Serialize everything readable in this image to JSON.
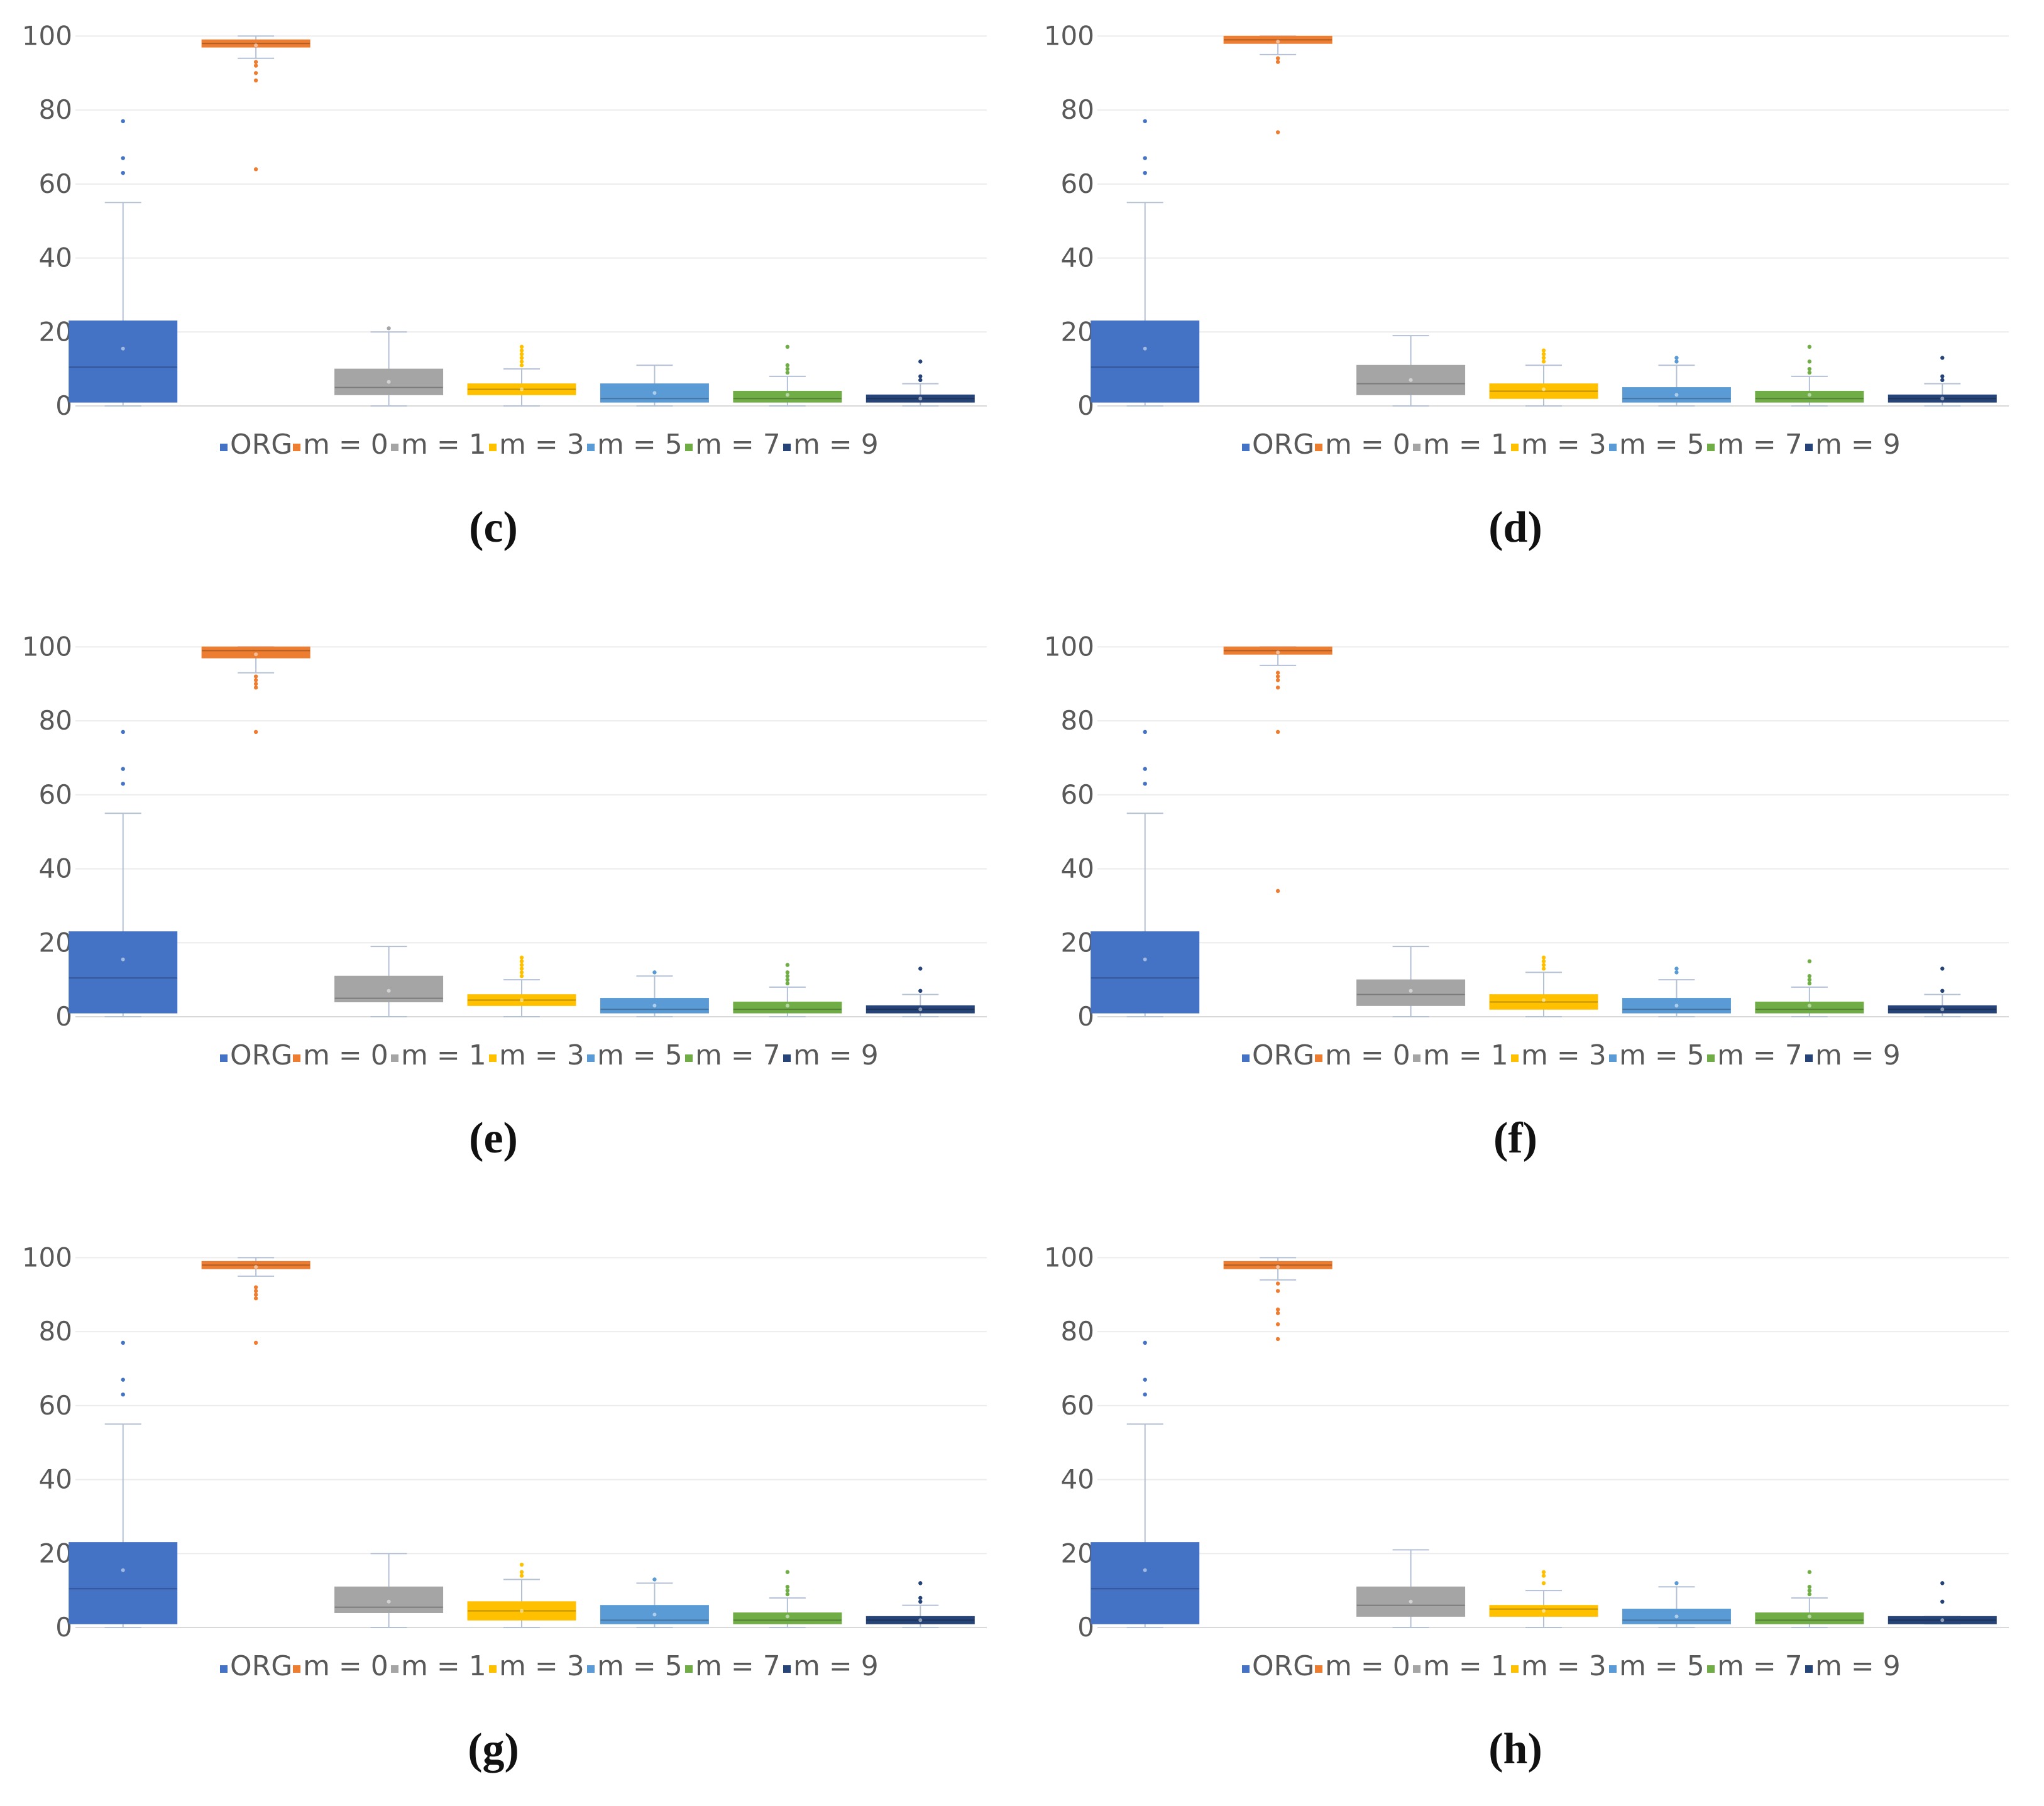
{
  "figure": {
    "series": [
      {
        "name": "ORG",
        "color": "#4472C4"
      },
      {
        "name": "m = 0",
        "color": "#ED7D31"
      },
      {
        "name": "m = 1",
        "color": "#A5A5A5"
      },
      {
        "name": "m = 3",
        "color": "#FFC000"
      },
      {
        "name": "m = 5",
        "color": "#5B9BD5"
      },
      {
        "name": "m = 7",
        "color": "#70AD47"
      },
      {
        "name": "m = 9",
        "color": "#264478"
      }
    ],
    "y_ticks": [
      "0",
      "20",
      "40",
      "60",
      "80",
      "100"
    ]
  },
  "chart_data": [
    {
      "type": "box",
      "panel": "(c)",
      "ylim": [
        0,
        105
      ],
      "grid": true,
      "legend": "bottom",
      "boxes": [
        {
          "series": "ORG",
          "min": 0,
          "q1": 1,
          "median": 10.5,
          "q3": 23,
          "max": 55,
          "mean": 15.5,
          "outliers": [
            63,
            67,
            77
          ]
        },
        {
          "series": "m = 0",
          "min": 94,
          "q1": 97,
          "median": 98,
          "q3": 99,
          "max": 100,
          "mean": 97.5,
          "outliers": [
            64,
            88,
            90,
            92,
            93
          ]
        },
        {
          "series": "m = 1",
          "min": 0,
          "q1": 3,
          "median": 5,
          "q3": 10,
          "max": 20,
          "mean": 6.5,
          "outliers": [
            21
          ]
        },
        {
          "series": "m = 3",
          "min": 0,
          "q1": 3,
          "median": 4.5,
          "q3": 6,
          "max": 10,
          "mean": 4.5,
          "outliers": [
            11,
            12,
            13,
            14,
            15,
            16
          ]
        },
        {
          "series": "m = 5",
          "min": 0,
          "q1": 1,
          "median": 2,
          "q3": 6,
          "max": 11,
          "mean": 3.5,
          "outliers": []
        },
        {
          "series": "m = 7",
          "min": 0,
          "q1": 1,
          "median": 2,
          "q3": 4,
          "max": 8,
          "mean": 3,
          "outliers": [
            9,
            10,
            11,
            16
          ]
        },
        {
          "series": "m = 9",
          "min": 0,
          "q1": 1,
          "median": 2,
          "q3": 3,
          "max": 6,
          "mean": 2,
          "outliers": [
            7,
            8,
            12
          ]
        }
      ]
    },
    {
      "type": "box",
      "panel": "(d)",
      "ylim": [
        0,
        105
      ],
      "grid": true,
      "legend": "bottom",
      "boxes": [
        {
          "series": "ORG",
          "min": 0,
          "q1": 1,
          "median": 10.5,
          "q3": 23,
          "max": 55,
          "mean": 15.5,
          "outliers": [
            63,
            67,
            77
          ]
        },
        {
          "series": "m = 0",
          "min": 95,
          "q1": 98,
          "median": 99,
          "q3": 100,
          "max": 100,
          "mean": 98.5,
          "outliers": [
            74,
            93,
            94
          ]
        },
        {
          "series": "m = 1",
          "min": 0,
          "q1": 3,
          "median": 6,
          "q3": 11,
          "max": 19,
          "mean": 7,
          "outliers": []
        },
        {
          "series": "m = 3",
          "min": 0,
          "q1": 2,
          "median": 4,
          "q3": 6,
          "max": 11,
          "mean": 4.5,
          "outliers": [
            12,
            13,
            14,
            15
          ]
        },
        {
          "series": "m = 5",
          "min": 0,
          "q1": 1,
          "median": 2,
          "q3": 5,
          "max": 11,
          "mean": 3,
          "outliers": [
            12,
            13
          ]
        },
        {
          "series": "m = 7",
          "min": 0,
          "q1": 1,
          "median": 2,
          "q3": 4,
          "max": 8,
          "mean": 3,
          "outliers": [
            9,
            10,
            12,
            16
          ]
        },
        {
          "series": "m = 9",
          "min": 0,
          "q1": 1,
          "median": 2,
          "q3": 3,
          "max": 6,
          "mean": 2,
          "outliers": [
            7,
            8,
            13
          ]
        }
      ]
    },
    {
      "type": "box",
      "panel": "(e)",
      "ylim": [
        0,
        105
      ],
      "grid": true,
      "legend": "bottom",
      "boxes": [
        {
          "series": "ORG",
          "min": 0,
          "q1": 1,
          "median": 10.5,
          "q3": 23,
          "max": 55,
          "mean": 15.5,
          "outliers": [
            63,
            67,
            77
          ]
        },
        {
          "series": "m = 0",
          "min": 93,
          "q1": 97,
          "median": 99,
          "q3": 100,
          "max": 100,
          "mean": 98,
          "outliers": [
            77,
            89,
            90,
            91,
            92
          ]
        },
        {
          "series": "m = 1",
          "min": 0,
          "q1": 4,
          "median": 5,
          "q3": 11,
          "max": 19,
          "mean": 7,
          "outliers": []
        },
        {
          "series": "m = 3",
          "min": 0,
          "q1": 3,
          "median": 4.5,
          "q3": 6,
          "max": 10,
          "mean": 4.5,
          "outliers": [
            11,
            12,
            13,
            14,
            15,
            16
          ]
        },
        {
          "series": "m = 5",
          "min": 0,
          "q1": 1,
          "median": 2,
          "q3": 5,
          "max": 11,
          "mean": 3,
          "outliers": [
            12
          ]
        },
        {
          "series": "m = 7",
          "min": 0,
          "q1": 1,
          "median": 2,
          "q3": 4,
          "max": 8,
          "mean": 3,
          "outliers": [
            9,
            10,
            11,
            12,
            14
          ]
        },
        {
          "series": "m = 9",
          "min": 0,
          "q1": 1,
          "median": 2,
          "q3": 3,
          "max": 6,
          "mean": 2,
          "outliers": [
            7,
            13
          ]
        }
      ]
    },
    {
      "type": "box",
      "panel": "(f)",
      "ylim": [
        0,
        105
      ],
      "grid": true,
      "legend": "bottom",
      "boxes": [
        {
          "series": "ORG",
          "min": 0,
          "q1": 1,
          "median": 10.5,
          "q3": 23,
          "max": 55,
          "mean": 15.5,
          "outliers": [
            63,
            67,
            77
          ]
        },
        {
          "series": "m = 0",
          "min": 95,
          "q1": 98,
          "median": 99,
          "q3": 100,
          "max": 100,
          "mean": 98.5,
          "outliers": [
            34,
            77,
            89,
            91,
            92,
            93
          ]
        },
        {
          "series": "m = 1",
          "min": 0,
          "q1": 3,
          "median": 6,
          "q3": 10,
          "max": 19,
          "mean": 7,
          "outliers": []
        },
        {
          "series": "m = 3",
          "min": 0,
          "q1": 2,
          "median": 4,
          "q3": 6,
          "max": 12,
          "mean": 4.5,
          "outliers": [
            13,
            14,
            15,
            16
          ]
        },
        {
          "series": "m = 5",
          "min": 0,
          "q1": 1,
          "median": 2,
          "q3": 5,
          "max": 10,
          "mean": 3,
          "outliers": [
            12,
            13
          ]
        },
        {
          "series": "m = 7",
          "min": 0,
          "q1": 1,
          "median": 2,
          "q3": 4,
          "max": 8,
          "mean": 3,
          "outliers": [
            9,
            10,
            11,
            15
          ]
        },
        {
          "series": "m = 9",
          "min": 0,
          "q1": 1,
          "median": 2,
          "q3": 3,
          "max": 6,
          "mean": 2,
          "outliers": [
            7,
            13
          ]
        }
      ]
    },
    {
      "type": "box",
      "panel": "(g)",
      "ylim": [
        0,
        105
      ],
      "grid": true,
      "legend": "bottom",
      "boxes": [
        {
          "series": "ORG",
          "min": 0,
          "q1": 1,
          "median": 10.5,
          "q3": 23,
          "max": 55,
          "mean": 15.5,
          "outliers": [
            63,
            67,
            77
          ]
        },
        {
          "series": "m = 0",
          "min": 95,
          "q1": 97,
          "median": 98,
          "q3": 99,
          "max": 100,
          "mean": 97.5,
          "outliers": [
            77,
            89,
            90,
            91,
            92
          ]
        },
        {
          "series": "m = 1",
          "min": 0,
          "q1": 4,
          "median": 5.5,
          "q3": 11,
          "max": 20,
          "mean": 7,
          "outliers": []
        },
        {
          "series": "m = 3",
          "min": 0,
          "q1": 2,
          "median": 4.5,
          "q3": 7,
          "max": 13,
          "mean": 4.5,
          "outliers": [
            14,
            15,
            17
          ]
        },
        {
          "series": "m = 5",
          "min": 0,
          "q1": 1,
          "median": 2,
          "q3": 6,
          "max": 12,
          "mean": 3.5,
          "outliers": [
            13
          ]
        },
        {
          "series": "m = 7",
          "min": 0,
          "q1": 1,
          "median": 2,
          "q3": 4,
          "max": 8,
          "mean": 3,
          "outliers": [
            9,
            10,
            11,
            15
          ]
        },
        {
          "series": "m = 9",
          "min": 0,
          "q1": 1,
          "median": 2,
          "q3": 3,
          "max": 6,
          "mean": 2,
          "outliers": [
            7,
            8,
            12
          ]
        }
      ]
    },
    {
      "type": "box",
      "panel": "(h)",
      "ylim": [
        0,
        105
      ],
      "grid": true,
      "legend": "bottom",
      "boxes": [
        {
          "series": "ORG",
          "min": 0,
          "q1": 1,
          "median": 10.5,
          "q3": 23,
          "max": 55,
          "mean": 15.5,
          "outliers": [
            63,
            67,
            77
          ]
        },
        {
          "series": "m = 0",
          "min": 94,
          "q1": 97,
          "median": 98,
          "q3": 99,
          "max": 100,
          "mean": 97.5,
          "outliers": [
            78,
            82,
            85,
            86,
            91,
            93
          ]
        },
        {
          "series": "m = 1",
          "min": 0,
          "q1": 3,
          "median": 6,
          "q3": 11,
          "max": 21,
          "mean": 7,
          "outliers": []
        },
        {
          "series": "m = 3",
          "min": 0,
          "q1": 3,
          "median": 5,
          "q3": 6,
          "max": 10,
          "mean": 4.5,
          "outliers": [
            12,
            14,
            15
          ]
        },
        {
          "series": "m = 5",
          "min": 0,
          "q1": 1,
          "median": 2,
          "q3": 5,
          "max": 11,
          "mean": 3,
          "outliers": [
            12
          ]
        },
        {
          "series": "m = 7",
          "min": 0,
          "q1": 1,
          "median": 2,
          "q3": 4,
          "max": 8,
          "mean": 3,
          "outliers": [
            9,
            10,
            11,
            15
          ]
        },
        {
          "series": "m = 9",
          "min": 1,
          "q1": 1,
          "median": 2,
          "q3": 3,
          "max": 3,
          "mean": 2,
          "outliers": [
            7,
            12
          ]
        }
      ]
    }
  ]
}
